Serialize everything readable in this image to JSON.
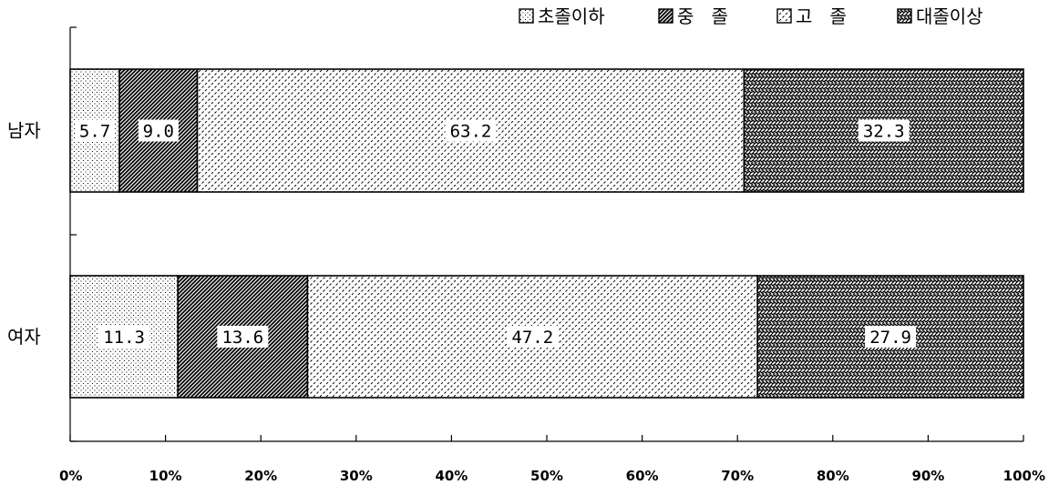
{
  "chart_data": {
    "type": "bar",
    "orientation": "horizontal",
    "stacked": "percent",
    "categories": [
      "남자",
      "여자"
    ],
    "series": [
      {
        "name": "초졸이하",
        "values": [
          5.7,
          11.3
        ]
      },
      {
        "name": "중 졸",
        "values": [
          9.0,
          13.6
        ]
      },
      {
        "name": "고 졸",
        "values": [
          63.2,
          47.2
        ]
      },
      {
        "name": "대졸이상",
        "values": [
          32.3,
          27.9
        ]
      }
    ],
    "value_labels": [
      [
        "5.7",
        "11.3"
      ],
      [
        "9.0",
        "13.6"
      ],
      [
        "63.2",
        "47.2"
      ],
      [
        "32.3",
        "27.9"
      ]
    ],
    "xaxis": {
      "ticks": [
        0,
        10,
        20,
        30,
        40,
        50,
        60,
        70,
        80,
        90,
        100
      ],
      "tick_labels": [
        "0%",
        "10%",
        "20%",
        "30%",
        "40%",
        "50%",
        "60%",
        "70%",
        "80%",
        "90%",
        "100%"
      ],
      "range": [
        0,
        100
      ]
    },
    "legend": {
      "placement": "top-right"
    },
    "grid": false
  }
}
